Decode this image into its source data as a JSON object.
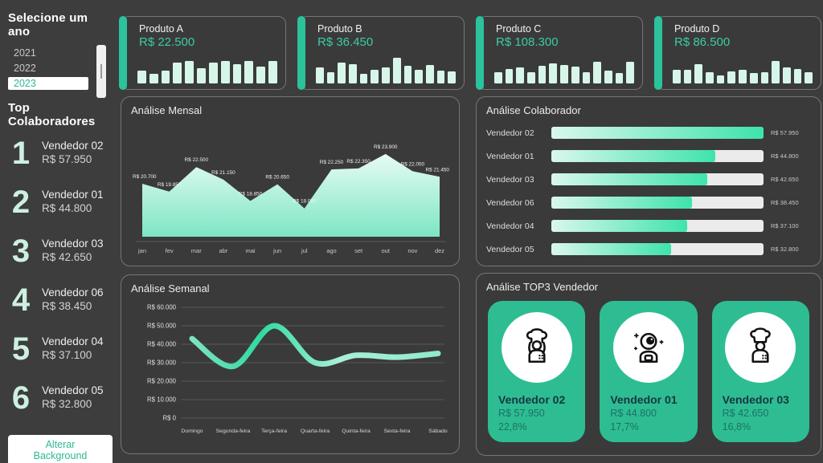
{
  "sidebar": {
    "year_filter": {
      "title": "Selecione um ano",
      "options": [
        "2021",
        "2022",
        "2023"
      ],
      "selected": "2023"
    },
    "top_title": "Top Colaboradores",
    "ranking": [
      {
        "rank": "1",
        "name": "Vendedor 02",
        "value": "R$ 57.950"
      },
      {
        "rank": "2",
        "name": "Vendedor 01",
        "value": "R$ 44.800"
      },
      {
        "rank": "3",
        "name": "Vendedor 03",
        "value": "R$ 42.650"
      },
      {
        "rank": "4",
        "name": "Vendedor 06",
        "value": "R$ 38.450"
      },
      {
        "rank": "5",
        "name": "Vendedor 04",
        "value": "R$ 37.100"
      },
      {
        "rank": "6",
        "name": "Vendedor 05",
        "value": "R$ 32.800"
      }
    ],
    "background_button": "Alterar Background"
  },
  "product_cards": [
    {
      "name": "Produto A",
      "value": "R$ 22.500"
    },
    {
      "name": "Produto B",
      "value": "R$ 36.450"
    },
    {
      "name": "Produto C",
      "value": "R$ 108.300"
    },
    {
      "name": "Produto D",
      "value": "R$ 86.500"
    }
  ],
  "panels": {
    "monthly_title": "Análise Mensal",
    "collaborator_title": "Análise Colaborador",
    "weekly_title": "Análise Semanal",
    "top3_title": "Análise TOP3 Vendedor"
  },
  "top3_cards": [
    {
      "icon": "chef-female-icon",
      "name": "Vendedor 02",
      "value": "R$ 57.950",
      "pct": "22,8%"
    },
    {
      "icon": "astronaut-icon",
      "name": "Vendedor 01",
      "value": "R$ 44.800",
      "pct": "17,7%"
    },
    {
      "icon": "chef-male-icon",
      "name": "Vendedor 03",
      "value": "R$ 42.650",
      "pct": "16,8%"
    }
  ],
  "colors": {
    "background": "#3d3d3d",
    "accent_teal": "#2cc29b",
    "value_teal": "#3bcda4",
    "mint_light": "#d7f6ea",
    "bar_gradient_end": "#3fe3ab",
    "top3_card_green": "#2ebd93",
    "rank_number": "#cdf0e1"
  },
  "chart_data": [
    {
      "id": "monthly",
      "type": "area",
      "title": "Análise Mensal",
      "x": [
        "jan",
        "fev",
        "mar",
        "abr",
        "mai",
        "jun",
        "jul",
        "ago",
        "set",
        "out",
        "nov",
        "dez"
      ],
      "values": [
        20700,
        19850,
        22500,
        21150,
        18850,
        20650,
        18050,
        22250,
        22350,
        23900,
        22050,
        21450
      ],
      "point_labels": [
        "R$ 20.700",
        "R$ 19.850",
        "R$ 22.500",
        "R$ 21.150",
        "R$ 18.850",
        "R$ 20.650",
        "R$ 18.050",
        "R$ 22.250",
        "R$ 22.350",
        "R$ 23.900",
        "R$ 22.050",
        "R$ 21.450"
      ],
      "ylim": [
        15000,
        24500
      ],
      "grid": false,
      "legend": "none"
    },
    {
      "id": "collaborator",
      "type": "bar",
      "orientation": "horizontal",
      "title": "Análise Colaborador",
      "categories": [
        "Vendedor 02",
        "Vendedor 01",
        "Vendedor 03",
        "Vendedor 06",
        "Vendedor 04",
        "Vendedor 05"
      ],
      "values": [
        57950,
        44800,
        42650,
        38450,
        37100,
        32800
      ],
      "value_labels": [
        "R$ 57.950",
        "R$ 44.800",
        "R$ 42.650",
        "R$ 38.450",
        "R$ 37.100",
        "R$ 32.800"
      ],
      "xlim": [
        0,
        57950
      ],
      "grid": false,
      "legend": "none"
    },
    {
      "id": "weekly",
      "type": "line",
      "title": "Análise Semanal",
      "categories": [
        "Domingo",
        "Segunda-feira",
        "Terça-feira",
        "Quarta-feira",
        "Quinta-feira",
        "Sexta-feira",
        "Sábado"
      ],
      "values": [
        43000,
        28000,
        50000,
        30000,
        34000,
        33000,
        35000
      ],
      "yticks": [
        "R$ 60.000",
        "R$ 50.000",
        "R$ 40.000",
        "R$ 30.000",
        "R$ 20.000",
        "R$ 10.000",
        "R$ 0"
      ],
      "ylim": [
        0,
        60000
      ],
      "grid": true,
      "legend": "none"
    },
    {
      "id": "product_sparklines",
      "type": "bar",
      "series": [
        {
          "name": "Produto A",
          "values": [
            45,
            32,
            45,
            72,
            78,
            52,
            72,
            78,
            68,
            78,
            58,
            78
          ]
        },
        {
          "name": "Produto B",
          "values": [
            55,
            38,
            72,
            68,
            34,
            46,
            56,
            90,
            60,
            48,
            64,
            44,
            42
          ]
        },
        {
          "name": "Produto C",
          "values": [
            38,
            50,
            55,
            40,
            62,
            70,
            64,
            58,
            40,
            74,
            44,
            36,
            76
          ]
        },
        {
          "name": "Produto D",
          "values": [
            48,
            46,
            68,
            38,
            28,
            42,
            46,
            36,
            40,
            78,
            56,
            50,
            38
          ]
        }
      ]
    }
  ]
}
